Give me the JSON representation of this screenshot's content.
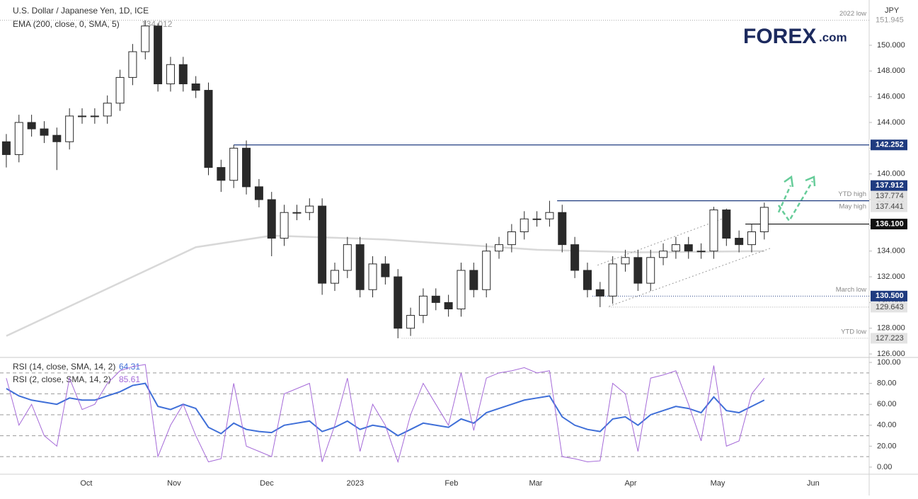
{
  "chart_data": [
    {
      "type": "candlestick",
      "title": "U.S. Dollar / Japanese Yen, 1D, ICE",
      "currency": "JPY",
      "logo": "FOREX",
      "logo_suffix": ".com",
      "up_color": "#ffffff",
      "down_color": "#2a2a2a",
      "edge_color": "#2a2a2a",
      "grid": false,
      "xlim": [
        -0.5,
        68.3
      ],
      "xticks": [
        {
          "value": 6.33,
          "label": "Oct"
        },
        {
          "value": 13.28,
          "label": "Nov"
        },
        {
          "value": 20.62,
          "label": "Dec"
        },
        {
          "value": 27.62,
          "label": "2023"
        },
        {
          "value": 35.24,
          "label": "Feb"
        },
        {
          "value": 41.91,
          "label": "Mar"
        },
        {
          "value": 49.42,
          "label": "Apr"
        },
        {
          "value": 56.31,
          "label": "May"
        },
        {
          "value": 63.87,
          "label": "Jun"
        }
      ],
      "ylim": [
        125.73,
        153.52
      ],
      "yticks": [
        {
          "value": 126,
          "label": "126.000"
        },
        {
          "value": 128,
          "label": "128.000"
        },
        {
          "value": 130,
          "label": "130.000"
        },
        {
          "value": 132,
          "label": "132.000"
        },
        {
          "value": 134,
          "label": "134.000"
        },
        {
          "value": 136,
          "label": "136.000"
        },
        {
          "value": 138,
          "label": "138.000"
        },
        {
          "value": 140,
          "label": "140.000"
        },
        {
          "value": 142,
          "label": "142.000"
        },
        {
          "value": 144,
          "label": "144.000"
        },
        {
          "value": 146,
          "label": "146.000"
        },
        {
          "value": 148,
          "label": "148.000"
        },
        {
          "value": 150,
          "label": "150.000"
        }
      ],
      "open": [
        142.5,
        141.5,
        144,
        143.5,
        143,
        142.5,
        144.5,
        144.5,
        144.5,
        145.5,
        147.5,
        149.5,
        151.5,
        147,
        148.5,
        147,
        146.5,
        140.5,
        139.5,
        142,
        139,
        138,
        135,
        137,
        137,
        137.5,
        131.5,
        132.5,
        134.5,
        131,
        133,
        132,
        128,
        129,
        130.5,
        130,
        129.5,
        132.5,
        131,
        134,
        134.5,
        135.5,
        136.5,
        136.5,
        137,
        134.5,
        132.5,
        131,
        130.5,
        133,
        133.5,
        131.5,
        133.5,
        134,
        134.5,
        134,
        134,
        137.2,
        135,
        134.5,
        135.5
      ],
      "high": [
        143.1,
        144.6,
        144.6,
        144.1,
        143.6,
        145.1,
        145.1,
        145.1,
        146.1,
        148.1,
        150.1,
        151.94,
        151.7,
        149.1,
        149.1,
        147.6,
        147.1,
        141.1,
        142.25,
        142.6,
        139.6,
        138.6,
        137.6,
        137.6,
        138.1,
        138.1,
        133.1,
        135.1,
        135.1,
        133.6,
        133.6,
        132.6,
        129.6,
        131.1,
        131.1,
        130.6,
        133.1,
        133.1,
        134.6,
        135.1,
        136.1,
        137.1,
        137.1,
        137.91,
        137.6,
        135.1,
        133.1,
        131.6,
        133.6,
        134.1,
        134.1,
        134.1,
        134.6,
        135.1,
        135.1,
        134.6,
        137.44,
        137.3,
        135.6,
        136.1,
        137.77
      ],
      "low": [
        140.5,
        140.9,
        142.9,
        142.4,
        140.3,
        141.9,
        143.9,
        143.9,
        143.9,
        144.9,
        146.9,
        148.9,
        146.4,
        146.4,
        146.4,
        145.9,
        139.9,
        138.6,
        138.9,
        138.4,
        137.4,
        133.6,
        134.4,
        136.4,
        136.4,
        130.6,
        130.9,
        131.9,
        130.4,
        130.4,
        131.4,
        127.22,
        127.4,
        128.4,
        129.4,
        128.9,
        128.9,
        130.4,
        130.4,
        133.4,
        133.9,
        134.9,
        135.9,
        135.9,
        133.9,
        131.9,
        130.4,
        129.64,
        129.9,
        132.4,
        130.9,
        130.9,
        132.9,
        133.4,
        133.4,
        133.4,
        133.4,
        134.4,
        133.9,
        133.9,
        134.9
      ],
      "close": [
        141.5,
        144,
        143.5,
        143,
        142.5,
        144.5,
        144.5,
        144.5,
        145.5,
        147.5,
        149.5,
        151.5,
        147,
        148.5,
        147,
        146.5,
        140.5,
        139.5,
        142,
        139,
        138,
        135,
        137,
        137,
        137.5,
        131.5,
        132.5,
        134.5,
        131,
        133,
        132,
        128,
        129,
        130.5,
        130,
        129.5,
        132.5,
        131,
        134,
        134.5,
        135.5,
        136.5,
        136.5,
        137,
        134.5,
        132.5,
        131,
        130.5,
        133,
        133.5,
        131.5,
        133.5,
        134,
        134.5,
        134,
        134,
        137.2,
        135,
        134.5,
        135.5,
        137.4
      ],
      "ema": {
        "name": "EMA (200, close, 0, SMA, 5)",
        "last": 134.012,
        "color": "#d8d8d8",
        "x": [
          0,
          15,
          21,
          30,
          42,
          50,
          60
        ],
        "values": [
          127.4,
          134.3,
          135.2,
          134.9,
          134.1,
          133.9,
          134.0
        ]
      },
      "trendlines": [
        {
          "color": "#9a9a9a",
          "x": [
            46.8,
            57.2
          ],
          "y": [
            132.9,
            136.7
          ]
        },
        {
          "color": "#9a9a9a",
          "x": [
            47.7,
            60.6
          ],
          "y": [
            129.7,
            134.26
          ]
        }
      ],
      "levels": [
        {
          "value": 151.945,
          "note": "2022 low",
          "from": -0.5,
          "style": "dotted",
          "color": "#aaaaaa",
          "box": "#ffffff"
        },
        {
          "value": 142.252,
          "from": 18,
          "style": "solid",
          "color": "#1f3b80",
          "box": "#1f3b80"
        },
        {
          "value": 137.912,
          "note": "YTD high",
          "from": 43.6,
          "style": "solid",
          "color": "#1f3b80",
          "box": "#1f3b80"
        },
        {
          "value": 137.774,
          "color": "#555555",
          "box": "#e3e3e3"
        },
        {
          "value": 137.441,
          "note": "May high",
          "color": "#555555",
          "box": "#e3e3e3"
        },
        {
          "value": {
            "value": 136.1,
            "label": "136.100"
          },
          "from": 58.5,
          "style": "solid",
          "color": "#111111",
          "box": "#111111"
        },
        {
          "value": {
            "value": 130.5,
            "label": "130.500"
          },
          "note": "March low",
          "from": 46.4,
          "style": "dotted",
          "color": "#1f3b80",
          "box": "#1f3b80"
        },
        {
          "value": 129.643,
          "from": 47.7,
          "style": "dotted",
          "color": "#aaaaaa",
          "box": "#e3e3e3"
        },
        {
          "value": 127.223,
          "note": "YTD low",
          "from": 31.3,
          "style": "dotted",
          "color": "#aaaaaa",
          "box": "#e3e3e3"
        }
      ]
    },
    {
      "type": "line",
      "ylim": [
        -6.8,
        103.4
      ],
      "yticks": [
        {
          "value": 0,
          "label": "0.00"
        },
        {
          "value": 20,
          "label": "20.00"
        },
        {
          "value": 40,
          "label": "40.00"
        },
        {
          "value": 60,
          "label": "60.00"
        },
        {
          "value": 80,
          "label": "80.00"
        },
        {
          "value": 100,
          "label": "100.00"
        }
      ],
      "levels": [
        90,
        70,
        50,
        30,
        10
      ],
      "series": [
        {
          "name": "RSI (14, close, SMA, 14, 2)",
          "last": 64.31,
          "color": "#3f6fd8",
          "values": [
            75,
            68,
            64,
            62,
            60,
            66,
            64,
            64,
            68,
            72,
            78,
            80,
            58,
            55,
            60,
            56,
            38,
            32,
            42,
            36,
            34,
            33,
            40,
            42,
            44,
            34,
            38,
            44,
            36,
            40,
            38,
            30,
            36,
            42,
            40,
            38,
            46,
            42,
            52,
            56,
            60,
            64,
            66,
            68,
            48,
            40,
            36,
            34,
            46,
            48,
            40,
            50,
            54,
            58,
            56,
            52,
            67,
            54,
            52,
            58,
            64
          ]
        },
        {
          "name": "RSI (2, close, SMA, 14, 2)",
          "last": 85.61,
          "color": "#a56ad8",
          "values": [
            85,
            40,
            60,
            30,
            20,
            85,
            55,
            60,
            80,
            92,
            96,
            98,
            10,
            40,
            60,
            30,
            5,
            8,
            80,
            20,
            15,
            10,
            70,
            75,
            80,
            5,
            40,
            85,
            15,
            60,
            40,
            5,
            50,
            80,
            60,
            40,
            90,
            35,
            85,
            90,
            92,
            95,
            90,
            92,
            10,
            8,
            5,
            6,
            80,
            70,
            15,
            85,
            88,
            92,
            60,
            25,
            97,
            20,
            25,
            70,
            85
          ]
        }
      ]
    }
  ]
}
